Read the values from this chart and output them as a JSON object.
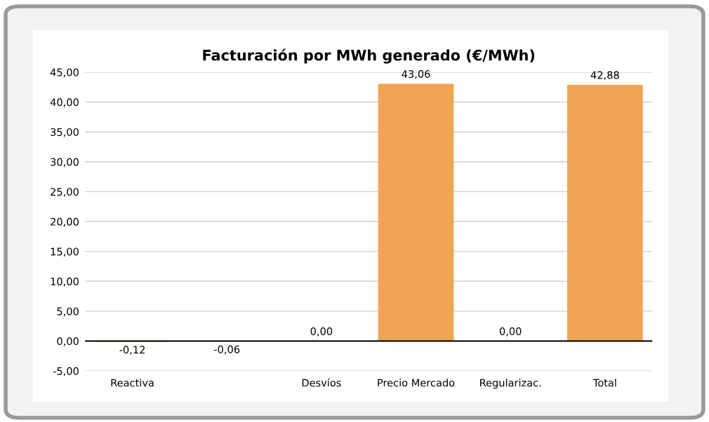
{
  "chart_data": {
    "type": "bar",
    "title": "Facturación por MWh generado (€/MWh)",
    "categories": [
      "Reactiva",
      null,
      "Desvíos",
      "Precio Mercado",
      "Regularizac.",
      "Total"
    ],
    "values": [
      -0.12,
      -0.06,
      0.0,
      43.06,
      0.0,
      42.88
    ],
    "value_labels": [
      "-0,12",
      "-0,06",
      "0,00",
      "43,06",
      "0,00",
      "42,88"
    ],
    "color": "#f0a455",
    "ylim": [
      -5,
      45
    ],
    "yticks": [
      {
        "value": -5,
        "label": "-5,00"
      },
      {
        "value": 0,
        "label": "0,00"
      },
      {
        "value": 5,
        "label": "5,00"
      },
      {
        "value": 10,
        "label": "10,00"
      },
      {
        "value": 15,
        "label": "15,00"
      },
      {
        "value": 20,
        "label": "20,00"
      },
      {
        "value": 25,
        "label": "25,00"
      },
      {
        "value": 30,
        "label": "30,00"
      },
      {
        "value": 35,
        "label": "35,00"
      },
      {
        "value": 40,
        "label": "40,00"
      },
      {
        "value": 45,
        "label": "45,00"
      }
    ],
    "grid": "y",
    "legend": false
  }
}
